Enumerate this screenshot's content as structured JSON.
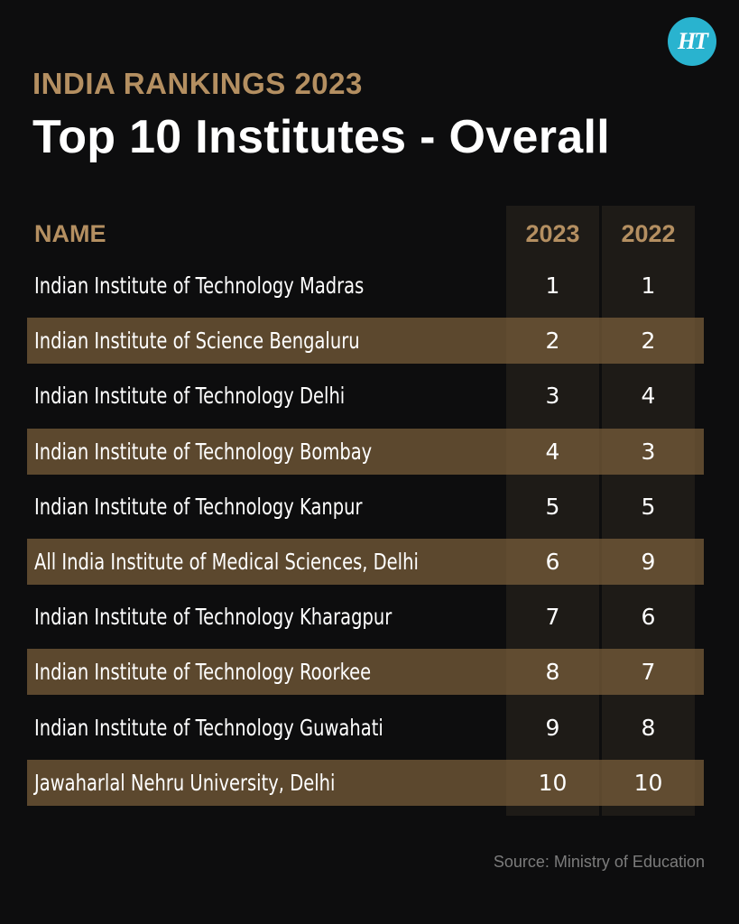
{
  "logo": {
    "text": "HT",
    "color": "#29b3cf"
  },
  "header": {
    "kicker": "INDIA RANKINGS 2023",
    "title": "Top 10 Institutes - Overall"
  },
  "table": {
    "columns": [
      "NAME",
      "2023",
      "2022"
    ],
    "rows": [
      {
        "name": "Indian Institute of Technology Madras",
        "y2023": "1",
        "y2022": "1"
      },
      {
        "name": "Indian Institute of Science  Bengaluru",
        "y2023": "2",
        "y2022": "2"
      },
      {
        "name": "Indian Institute of Technology Delhi",
        "y2023": "3",
        "y2022": "4"
      },
      {
        "name": "Indian Institute of Technology Bombay",
        "y2023": "4",
        "y2022": "3"
      },
      {
        "name": "Indian Institute of Technology Kanpur",
        "y2023": "5",
        "y2022": "5"
      },
      {
        "name": "All India Institute of Medical Sciences, Delhi",
        "y2023": "6",
        "y2022": "9"
      },
      {
        "name": "Indian Institute of Technology Kharagpur",
        "y2023": "7",
        "y2022": "6"
      },
      {
        "name": "Indian Institute of Technology Roorkee",
        "y2023": "8",
        "y2022": "7"
      },
      {
        "name": "Indian Institute of Technology Guwahati",
        "y2023": "9",
        "y2022": "8"
      },
      {
        "name": "Jawaharlal Nehru University, Delhi",
        "y2023": "10",
        "y2022": "10"
      }
    ]
  },
  "footer": {
    "source": "Source: Ministry of Education"
  },
  "colors": {
    "accent": "#b48f61",
    "band": "#7c603c",
    "background": "#0d0d0e"
  },
  "chart_data": {
    "type": "table",
    "title": "Top 10 Institutes - Overall",
    "subtitle": "INDIA RANKINGS 2023",
    "columns": [
      "NAME",
      "2023",
      "2022"
    ],
    "categories": [
      "Indian Institute of Technology Madras",
      "Indian Institute of Science  Bengaluru",
      "Indian Institute of Technology Delhi",
      "Indian Institute of Technology Bombay",
      "Indian Institute of Technology Kanpur",
      "All India Institute of Medical Sciences, Delhi",
      "Indian Institute of Technology Kharagpur",
      "Indian Institute of Technology Roorkee",
      "Indian Institute of Technology Guwahati",
      "Jawaharlal Nehru University, Delhi"
    ],
    "series": [
      {
        "name": "2023",
        "values": [
          1,
          2,
          3,
          4,
          5,
          6,
          7,
          8,
          9,
          10
        ]
      },
      {
        "name": "2022",
        "values": [
          1,
          2,
          4,
          3,
          5,
          9,
          6,
          7,
          8,
          10
        ]
      }
    ],
    "source": "Source: Ministry of Education"
  }
}
